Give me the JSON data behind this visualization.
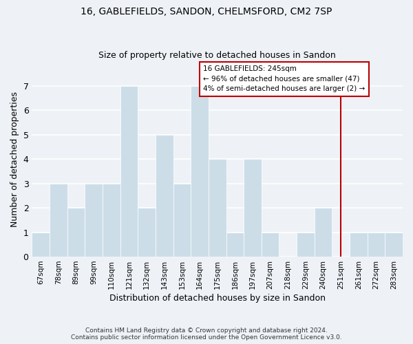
{
  "title_line1": "16, GABLEFIELDS, SANDON, CHELMSFORD, CM2 7SP",
  "title_line2": "Size of property relative to detached houses in Sandon",
  "xlabel": "Distribution of detached houses by size in Sandon",
  "ylabel": "Number of detached properties",
  "bin_labels": [
    "67sqm",
    "78sqm",
    "89sqm",
    "99sqm",
    "110sqm",
    "121sqm",
    "132sqm",
    "143sqm",
    "153sqm",
    "164sqm",
    "175sqm",
    "186sqm",
    "197sqm",
    "207sqm",
    "218sqm",
    "229sqm",
    "240sqm",
    "251sqm",
    "261sqm",
    "272sqm",
    "283sqm"
  ],
  "bar_values": [
    1,
    3,
    2,
    3,
    3,
    7,
    2,
    5,
    3,
    7,
    4,
    1,
    4,
    1,
    0,
    1,
    2,
    0,
    1,
    1,
    1
  ],
  "bar_color": "#ccdde8",
  "bar_edgecolor": "#a8c4d8",
  "vline_color": "#bb0000",
  "vline_position": 17.0,
  "annotation_text": "16 GABLEFIELDS: 245sqm\n← 96% of detached houses are smaller (47)\n4% of semi-detached houses are larger (2) →",
  "annotation_box_facecolor": "white",
  "annotation_box_edgecolor": "#bb0000",
  "annotation_text_color": "black",
  "ylim": [
    0,
    8
  ],
  "yticks": [
    0,
    1,
    2,
    3,
    4,
    5,
    6,
    7,
    8
  ],
  "background_color": "#eef2f7",
  "grid_color": "white",
  "footer_line1": "Contains HM Land Registry data © Crown copyright and database right 2024.",
  "footer_line2": "Contains public sector information licensed under the Open Government Licence v3.0."
}
